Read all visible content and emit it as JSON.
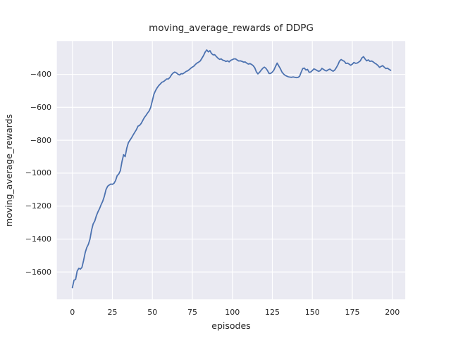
{
  "chart_data": {
    "type": "line",
    "title": "moving_average_rewards of DDPG",
    "xlabel": "episodes",
    "ylabel": "moving_average_rewards",
    "grid": true,
    "legend": "none",
    "style": {
      "figure_background": "#ffffff",
      "axes_background": "#eaeaf2",
      "grid_color": "#ffffff",
      "line_color": "#4c72b0",
      "text_color": "#262626",
      "line_width": 1.8
    },
    "xlim": [
      -9.7,
      208.1
    ],
    "ylim": [
      -1766,
      -198
    ],
    "x_ticks": {
      "values": [
        0,
        25,
        50,
        75,
        100,
        125,
        150,
        175,
        200
      ],
      "labels": [
        "0",
        "25",
        "50",
        "75",
        "100",
        "125",
        "150",
        "175",
        "200"
      ]
    },
    "y_ticks": {
      "values": [
        -400,
        -600,
        -800,
        -1000,
        -1200,
        -1400,
        -1600
      ],
      "labels": [
        "−400",
        "−600",
        "−800",
        "−1000",
        "−1200",
        "−1400",
        "−1600"
      ]
    },
    "series": [
      {
        "name": "moving_average_rewards",
        "x": [
          0,
          1,
          2,
          3,
          4,
          5,
          6,
          7,
          8,
          9,
          10,
          11,
          12,
          13,
          14,
          15,
          16,
          17,
          18,
          19,
          20,
          21,
          22,
          23,
          24,
          25,
          26,
          27,
          28,
          29,
          30,
          31,
          32,
          33,
          34,
          35,
          36,
          37,
          38,
          39,
          40,
          41,
          42,
          43,
          44,
          45,
          46,
          47,
          48,
          49,
          50,
          51,
          52,
          53,
          54,
          55,
          56,
          57,
          58,
          59,
          60,
          61,
          62,
          63,
          64,
          65,
          66,
          67,
          68,
          69,
          70,
          71,
          72,
          73,
          74,
          75,
          76,
          77,
          78,
          79,
          80,
          81,
          82,
          83,
          84,
          85,
          86,
          87,
          88,
          89,
          90,
          91,
          92,
          93,
          94,
          95,
          96,
          97,
          98,
          99,
          100,
          101,
          102,
          103,
          104,
          105,
          106,
          107,
          108,
          109,
          110,
          111,
          112,
          113,
          114,
          115,
          116,
          117,
          118,
          119,
          120,
          121,
          122,
          123,
          124,
          125,
          126,
          127,
          128,
          129,
          130,
          131,
          132,
          133,
          134,
          135,
          136,
          137,
          138,
          139,
          140,
          141,
          142,
          143,
          144,
          145,
          146,
          147,
          148,
          149,
          150,
          151,
          152,
          153,
          154,
          155,
          156,
          157,
          158,
          159,
          160,
          161,
          162,
          163,
          164,
          165,
          166,
          167,
          168,
          169,
          170,
          171,
          172,
          173,
          174,
          175,
          176,
          177,
          178,
          179,
          180,
          181,
          182,
          183,
          184,
          185,
          186,
          187,
          188,
          189,
          190,
          191,
          192,
          193,
          194,
          195,
          196,
          197,
          198,
          199
        ],
        "y": [
          -1695,
          -1650,
          -1645,
          -1595,
          -1578,
          -1582,
          -1572,
          -1530,
          -1482,
          -1452,
          -1432,
          -1400,
          -1345,
          -1308,
          -1290,
          -1258,
          -1235,
          -1215,
          -1190,
          -1170,
          -1140,
          -1100,
          -1080,
          -1072,
          -1066,
          -1068,
          -1062,
          -1045,
          -1015,
          -1005,
          -985,
          -930,
          -888,
          -900,
          -848,
          -815,
          -800,
          -785,
          -768,
          -752,
          -736,
          -715,
          -710,
          -698,
          -680,
          -662,
          -650,
          -635,
          -622,
          -600,
          -560,
          -520,
          -498,
          -482,
          -468,
          -458,
          -448,
          -444,
          -436,
          -428,
          -428,
          -418,
          -402,
          -392,
          -386,
          -391,
          -399,
          -404,
          -396,
          -397,
          -391,
          -383,
          -379,
          -372,
          -363,
          -356,
          -350,
          -339,
          -331,
          -326,
          -318,
          -302,
          -285,
          -265,
          -252,
          -264,
          -256,
          -274,
          -282,
          -281,
          -292,
          -302,
          -309,
          -306,
          -314,
          -317,
          -322,
          -318,
          -324,
          -315,
          -311,
          -306,
          -306,
          -313,
          -319,
          -318,
          -321,
          -326,
          -325,
          -332,
          -338,
          -335,
          -340,
          -347,
          -360,
          -385,
          -397,
          -388,
          -375,
          -364,
          -356,
          -364,
          -378,
          -395,
          -394,
          -386,
          -374,
          -352,
          -332,
          -348,
          -365,
          -386,
          -398,
          -406,
          -411,
          -415,
          -417,
          -418,
          -416,
          -418,
          -420,
          -419,
          -412,
          -388,
          -365,
          -362,
          -374,
          -370,
          -388,
          -386,
          -377,
          -367,
          -371,
          -377,
          -382,
          -377,
          -364,
          -370,
          -377,
          -379,
          -372,
          -368,
          -376,
          -381,
          -374,
          -359,
          -342,
          -320,
          -310,
          -316,
          -321,
          -334,
          -332,
          -338,
          -345,
          -338,
          -328,
          -333,
          -332,
          -326,
          -318,
          -300,
          -293,
          -307,
          -318,
          -312,
          -321,
          -319,
          -324,
          -332,
          -338,
          -346,
          -358,
          -352,
          -347,
          -357,
          -365,
          -363,
          -370,
          -376
        ]
      }
    ]
  }
}
